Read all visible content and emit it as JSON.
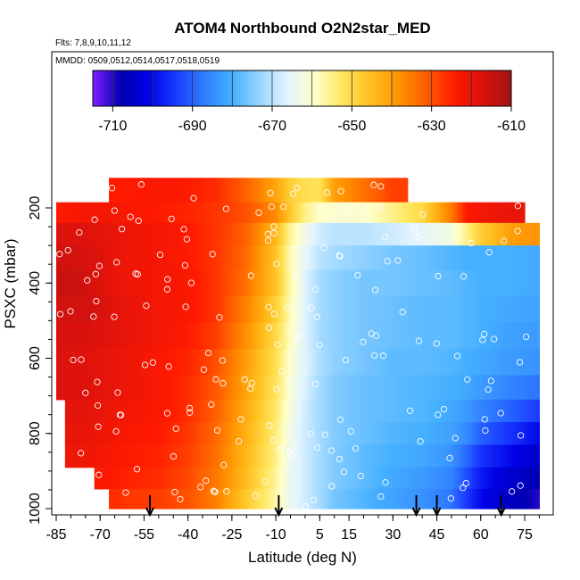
{
  "chart_data": {
    "type": "heatmap",
    "title": "ATOM4 Northbound O2N2star_MED",
    "notes": [
      "Flts: 7,8,9,10,11,12",
      "MMDD: 0509,0512,0514,0517,0518,0519"
    ],
    "xlabel": "Latitude (deg N)",
    "ylabel": "PSXC (mbar)",
    "x_ticks": [
      -85,
      -70,
      -55,
      -40,
      -25,
      -10,
      5,
      15,
      30,
      45,
      60,
      75
    ],
    "x_tick_labels": [
      "-85",
      "-70",
      "-55",
      "-40",
      "-25",
      "-10",
      "5",
      "15",
      "30",
      "45",
      "60",
      "75"
    ],
    "y_ticks": [
      200,
      400,
      600,
      800,
      1000
    ],
    "y_tick_labels": [
      "200",
      "400",
      "600",
      "800",
      "1000"
    ],
    "y_reversed": true,
    "colorbar": {
      "range": [
        -715,
        -610
      ],
      "ticks": [
        -710,
        -690,
        -670,
        -650,
        -630,
        -610
      ],
      "tick_labels": [
        "-710",
        "-690",
        "-670",
        "-650",
        "-630",
        "-610"
      ],
      "colors": [
        "#7f1fff",
        "#0000b3",
        "#0000e6",
        "#1a3cff",
        "#2f7dff",
        "#45b0ff",
        "#9ad6ff",
        "#e3f4ff",
        "#ffffc8",
        "#ffe45a",
        "#ffbe1e",
        "#ff9200",
        "#ff5a00",
        "#ff1a00",
        "#d9120e",
        "#a01414"
      ]
    },
    "flight_arrows_lat": [
      -53,
      -9,
      38,
      45,
      67
    ],
    "profiles": [
      {
        "p": 160,
        "values": [
          null,
          null,
          null,
          null,
          -624,
          -624,
          -623,
          -624,
          -626,
          -632,
          -641,
          -648,
          -651,
          -652,
          -640,
          -634,
          -628,
          null,
          null,
          null,
          null,
          null,
          null
        ]
      },
      {
        "p": 210,
        "values": [
          -624,
          -623,
          -622,
          -622,
          -622,
          -623,
          -624,
          -625,
          -627,
          -630,
          -637,
          -647,
          -655,
          -659,
          -660,
          -660,
          -655,
          -650,
          -635,
          -624,
          -622,
          -620,
          null
        ]
      },
      {
        "p": 270,
        "values": [
          -618,
          -618,
          -618,
          -619,
          -620,
          -621,
          -622,
          -624,
          -627,
          -632,
          -644,
          -656,
          -663,
          -668,
          -670,
          -670,
          -668,
          -665,
          -662,
          -655,
          -648,
          -640,
          -638
        ]
      },
      {
        "p": 330,
        "values": [
          -616,
          -616,
          -617,
          -618,
          -620,
          -621,
          -622,
          -624,
          -627,
          -633,
          -646,
          -658,
          -665,
          -670,
          -672,
          -674,
          -676,
          -677,
          -679,
          -680,
          -680,
          -680,
          -681
        ]
      },
      {
        "p": 400,
        "values": [
          -615,
          -615,
          -616,
          -618,
          -620,
          -621,
          -622,
          -623,
          -627,
          -634,
          -646,
          -657,
          -666,
          -672,
          -674,
          -676,
          -676,
          -677,
          -678,
          -679,
          -680,
          -680,
          -681
        ]
      },
      {
        "p": 470,
        "values": [
          -616,
          -616,
          -616,
          -617,
          -619,
          -620,
          -622,
          -623,
          -627,
          -636,
          -648,
          -658,
          -666,
          -672,
          -674,
          -676,
          -677,
          -678,
          -678,
          -679,
          -680,
          -681,
          -682
        ]
      },
      {
        "p": 540,
        "values": [
          -617,
          -617,
          -617,
          -618,
          -619,
          -620,
          -622,
          -624,
          -628,
          -638,
          -650,
          -659,
          -666,
          -672,
          -674,
          -676,
          -677,
          -678,
          -678,
          -679,
          -680,
          -682,
          -683
        ]
      },
      {
        "p": 610,
        "values": [
          -618,
          -618,
          -618,
          -619,
          -620,
          -621,
          -623,
          -625,
          -630,
          -640,
          -651,
          -660,
          -666,
          -671,
          -674,
          -676,
          -678,
          -678,
          -679,
          -680,
          -681,
          -683,
          -684
        ]
      },
      {
        "p": 680,
        "values": [
          -618,
          -618,
          -618,
          -619,
          -620,
          -621,
          -623,
          -626,
          -631,
          -641,
          -652,
          -661,
          -667,
          -672,
          -675,
          -677,
          -678,
          -679,
          -680,
          -681,
          -683,
          -686,
          -688
        ]
      },
      {
        "p": 740,
        "values": [
          null,
          -619,
          -619,
          -620,
          -621,
          -622,
          -623,
          -626,
          -632,
          -642,
          -653,
          -662,
          -668,
          -672,
          -675,
          -677,
          -678,
          -679,
          -681,
          -683,
          -686,
          -690,
          -694
        ]
      },
      {
        "p": 800,
        "values": [
          null,
          -620,
          -620,
          -621,
          -622,
          -623,
          -624,
          -627,
          -633,
          -643,
          -654,
          -663,
          -668,
          -672,
          -675,
          -677,
          -679,
          -680,
          -682,
          -685,
          -690,
          -695,
          -700
        ]
      },
      {
        "p": 860,
        "values": [
          null,
          -621,
          -621,
          -622,
          -623,
          -624,
          -625,
          -628,
          -634,
          -644,
          -655,
          -664,
          -668,
          -672,
          -675,
          -678,
          -680,
          -681,
          -684,
          -689,
          -695,
          -700,
          -705
        ]
      },
      {
        "p": 920,
        "values": [
          null,
          null,
          null,
          -623,
          -624,
          -625,
          -626,
          -629,
          -635,
          -645,
          -656,
          -664,
          -668,
          -672,
          -675,
          -678,
          -681,
          -683,
          -686,
          -692,
          -698,
          -704,
          -708
        ]
      },
      {
        "p": 975,
        "values": [
          null,
          null,
          null,
          null,
          -626,
          -627,
          -628,
          -630,
          -636,
          -647,
          -657,
          -664,
          -668,
          -672,
          -676,
          -679,
          -682,
          -684,
          -688,
          -694,
          -700,
          -706,
          -710
        ]
      }
    ],
    "profile_lats": [
      -85,
      -80,
      -75,
      -70,
      -65,
      -60,
      -50,
      -40,
      -30,
      -20,
      -10,
      -5,
      0,
      5,
      10,
      20,
      30,
      40,
      50,
      55,
      60,
      70,
      80
    ]
  }
}
